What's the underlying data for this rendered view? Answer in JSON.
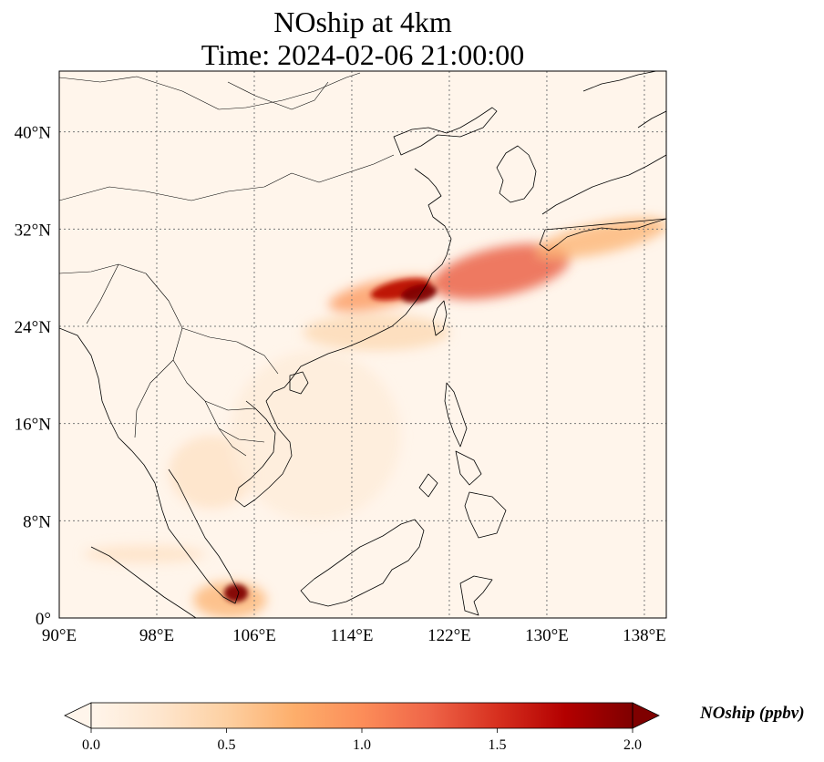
{
  "title": {
    "line1": "NOship at 4km",
    "line2": "Time: 2024-02-06 21:00:00"
  },
  "map": {
    "projection": "PlateCarree",
    "lon_range": [
      90,
      139.8
    ],
    "lat_range": [
      0,
      45
    ],
    "lon_ticks": [
      {
        "value": 90,
        "label": "90°E"
      },
      {
        "value": 98,
        "label": "98°E"
      },
      {
        "value": 106,
        "label": "106°E"
      },
      {
        "value": 114,
        "label": "114°E"
      },
      {
        "value": 122,
        "label": "122°E"
      },
      {
        "value": 130,
        "label": "130°E"
      },
      {
        "value": 138,
        "label": "138°E"
      }
    ],
    "lat_ticks": [
      {
        "value": 0,
        "label": "0°"
      },
      {
        "value": 8,
        "label": "8°N"
      },
      {
        "value": 16,
        "label": "16°N"
      },
      {
        "value": 24,
        "label": "24°N"
      },
      {
        "value": 32,
        "label": "32°N"
      },
      {
        "value": 40,
        "label": "40°N"
      }
    ],
    "gridlines": true,
    "background_color": "#fff5eb",
    "coastline_color": "#000000",
    "field_plumes": [
      {
        "lon": [
          112,
          121
        ],
        "lat": [
          25.5,
          27.8
        ],
        "value": 0.9
      },
      {
        "lon": [
          115.5,
          120.5
        ],
        "lat": [
          26.3,
          27.8
        ],
        "value": 1.7
      },
      {
        "lon": [
          118,
          121
        ],
        "lat": [
          26.0,
          27.4
        ],
        "value": 2.0
      },
      {
        "lon": [
          120.5,
          132
        ],
        "lat": [
          26.5,
          30.5
        ],
        "value": 1.3
      },
      {
        "lon": [
          129,
          140
        ],
        "lat": [
          30,
          32.5
        ],
        "value": 0.7
      },
      {
        "lon": [
          101,
          107
        ],
        "lat": [
          0,
          3
        ],
        "value": 0.7
      },
      {
        "lon": [
          103.5,
          105.5
        ],
        "lat": [
          1.3,
          2.8
        ],
        "value": 2.0
      },
      {
        "lon": [
          92,
          102
        ],
        "lat": [
          4.5,
          6
        ],
        "value": 0.3
      },
      {
        "lon": [
          99,
          106
        ],
        "lat": [
          9,
          15
        ],
        "value": 0.3
      },
      {
        "lon": [
          104,
          118
        ],
        "lat": [
          8,
          22
        ],
        "value": 0.15
      },
      {
        "lon": [
          110,
          122
        ],
        "lat": [
          22,
          25
        ],
        "value": 0.4
      }
    ]
  },
  "colorbar": {
    "label": "NOship (ppbv)",
    "min": 0.0,
    "max": 2.0,
    "extend": "both",
    "ticks": [
      {
        "value": 0.0,
        "label": "0.0"
      },
      {
        "value": 0.5,
        "label": "0.5"
      },
      {
        "value": 1.0,
        "label": "1.0"
      },
      {
        "value": 1.5,
        "label": "1.5"
      },
      {
        "value": 2.0,
        "label": "2.0"
      }
    ],
    "colormap": "OrRd",
    "colors": [
      "#fff5eb",
      "#fee6ce",
      "#fdd0a2",
      "#fdae6b",
      "#fd8d3c",
      "#f16913",
      "#d94801",
      "#a63603",
      "#7f2704"
    ]
  }
}
